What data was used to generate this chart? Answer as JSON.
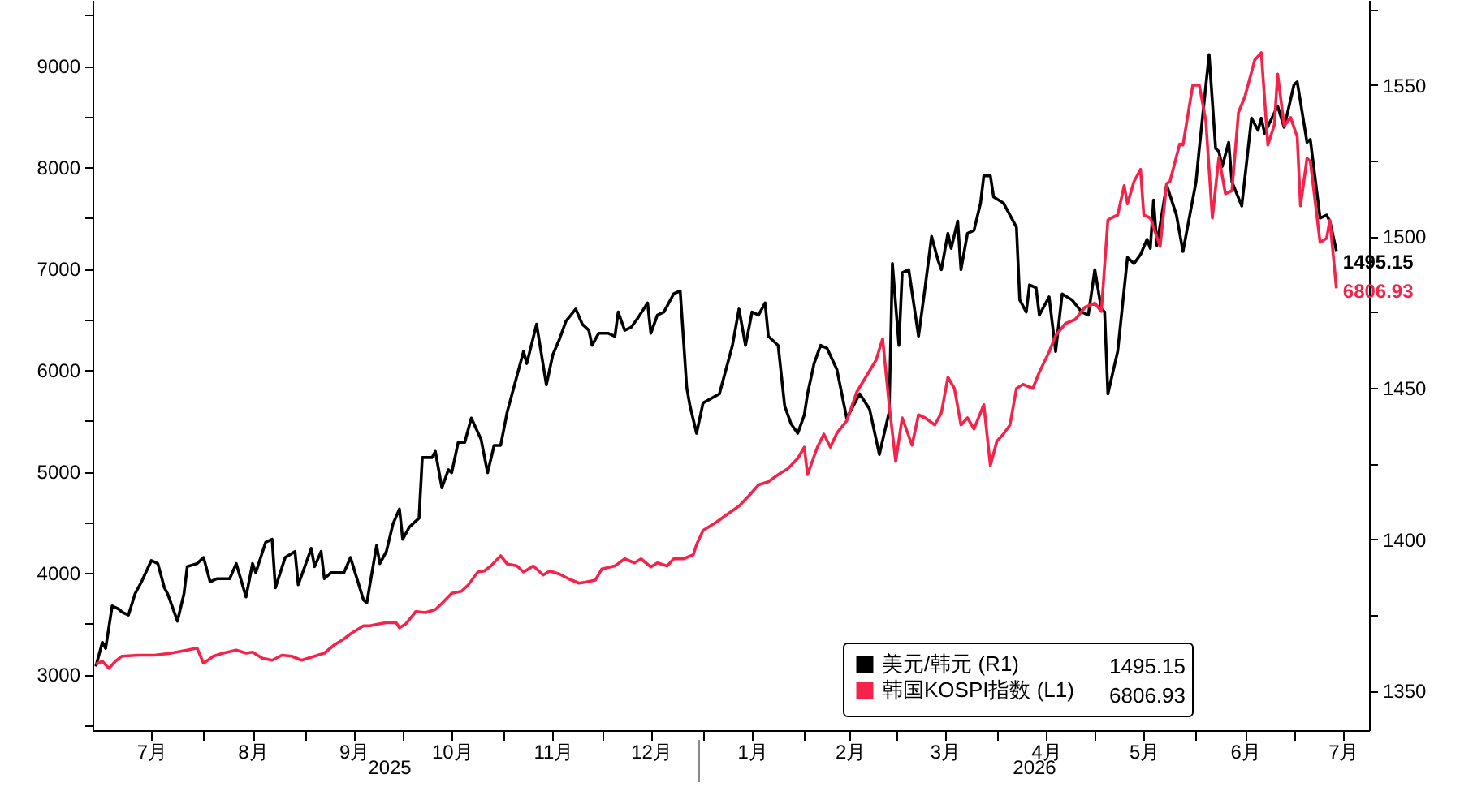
{
  "chart_data": {
    "type": "line",
    "xlim": [
      "2025-06-28",
      "2026-07-24"
    ],
    "xticks": [
      {
        "value": "2025-07-16",
        "label": "7月"
      },
      {
        "value": "2025-08-01",
        "label": null
      },
      {
        "value": "2025-08-16",
        "label": "8月"
      },
      {
        "value": "2025-09-01",
        "label": null
      },
      {
        "value": "2025-09-16",
        "label": "9月"
      },
      {
        "value": "2025-10-01",
        "label": null
      },
      {
        "value": "2025-10-16",
        "label": "10月"
      },
      {
        "value": "2025-11-01",
        "label": null
      },
      {
        "value": "2025-11-16",
        "label": "11月"
      },
      {
        "value": "2025-12-01",
        "label": null
      },
      {
        "value": "2025-12-16",
        "label": "12月"
      },
      {
        "value": "2026-01-01",
        "label": null
      },
      {
        "value": "2026-01-16",
        "label": "1月"
      },
      {
        "value": "2026-02-01",
        "label": null
      },
      {
        "value": "2026-02-15",
        "label": "2月"
      },
      {
        "value": "2026-03-01",
        "label": null
      },
      {
        "value": "2026-03-16",
        "label": "3月"
      },
      {
        "value": "2026-04-01",
        "label": null
      },
      {
        "value": "2026-04-16",
        "label": "4月"
      },
      {
        "value": "2026-05-01",
        "label": null
      },
      {
        "value": "2026-05-16",
        "label": "5月"
      },
      {
        "value": "2026-06-01",
        "label": null
      },
      {
        "value": "2026-06-16",
        "label": "6月"
      },
      {
        "value": "2026-07-01",
        "label": null
      },
      {
        "value": "2026-07-16",
        "label": "7月"
      }
    ],
    "ylim": [
      2450,
      9650
    ],
    "yticks": [
      {
        "value": 2500,
        "label": null
      },
      3000,
      {
        "value": 3500,
        "label": null
      },
      4000,
      {
        "value": 4500,
        "label": null
      },
      5000,
      {
        "value": 5500,
        "label": null
      },
      6000,
      {
        "value": 6500,
        "label": null
      },
      7000,
      {
        "value": 7500,
        "label": null
      },
      8000,
      {
        "value": 8500,
        "label": null
      },
      9000,
      {
        "value": 9500,
        "label": null
      }
    ],
    "y2lim": [
      1337,
      1578
    ],
    "y2ticks": [
      1350,
      {
        "value": 1375,
        "label": null
      },
      1400,
      {
        "value": 1425,
        "label": null
      },
      1450,
      {
        "value": 1475,
        "label": null
      },
      1500,
      {
        "value": 1525,
        "label": null
      },
      1550,
      {
        "value": 1575,
        "label": null
      }
    ],
    "legend": "bottom right",
    "annotations": [
      "2025",
      "2026"
    ],
    "series": [
      {
        "name": "美元/韩元 (R1)",
        "color": "#000000",
        "axis": "y2",
        "x": [
          "2025-06-29",
          "2025-07-01",
          "2025-07-02",
          "2025-07-04",
          "2025-07-06",
          "2025-07-07",
          "2025-07-09",
          "2025-07-11",
          "2025-07-13",
          "2025-07-16",
          "2025-07-18",
          "2025-07-20",
          "2025-07-21",
          "2025-07-24",
          "2025-07-26",
          "2025-07-27",
          "2025-07-30",
          "2025-08-01",
          "2025-08-03",
          "2025-08-05",
          "2025-08-09",
          "2025-08-11",
          "2025-08-14",
          "2025-08-16",
          "2025-08-17",
          "2025-08-20",
          "2025-08-22",
          "2025-08-23",
          "2025-08-26",
          "2025-08-29",
          "2025-08-30",
          "2025-09-02",
          "2025-09-03",
          "2025-09-04",
          "2025-09-06",
          "2025-09-07",
          "2025-09-09",
          "2025-09-13",
          "2025-09-15",
          "2025-09-19",
          "2025-09-20",
          "2025-09-23",
          "2025-09-24",
          "2025-09-26",
          "2025-09-28",
          "2025-09-30",
          "2025-10-01",
          "2025-10-03",
          "2025-10-06",
          "2025-10-07",
          "2025-10-10",
          "2025-10-11",
          "2025-10-13",
          "2025-10-15",
          "2025-10-16",
          "2025-10-18",
          "2025-10-20",
          "2025-10-22",
          "2025-10-25",
          "2025-10-27",
          "2025-10-29",
          "2025-10-31",
          "2025-11-02",
          "2025-11-04",
          "2025-11-07",
          "2025-11-08",
          "2025-11-11",
          "2025-11-14",
          "2025-11-16",
          "2025-11-18",
          "2025-11-20",
          "2025-11-23",
          "2025-11-25",
          "2025-11-27",
          "2025-11-28",
          "2025-11-30",
          "2025-12-03",
          "2025-12-05",
          "2025-12-06",
          "2025-12-08",
          "2025-12-10",
          "2025-12-12",
          "2025-12-15",
          "2025-12-16",
          "2025-12-18",
          "2025-12-20",
          "2025-12-23",
          "2025-12-25",
          "2025-12-27",
          "2025-12-28",
          "2025-12-30",
          "2026-01-01",
          "2026-01-06",
          "2026-01-10",
          "2026-01-12",
          "2026-01-14",
          "2026-01-16",
          "2026-01-18",
          "2026-01-20",
          "2026-01-21",
          "2026-01-24",
          "2026-01-26",
          "2026-01-28",
          "2026-01-30",
          "2026-02-01",
          "2026-02-02",
          "2026-02-04",
          "2026-02-06",
          "2026-02-08",
          "2026-02-11",
          "2026-02-14",
          "2026-02-18",
          "2026-02-21",
          "2026-02-24",
          "2026-02-27",
          "2026-02-28",
          "2026-03-02",
          "2026-03-03",
          "2026-03-05",
          "2026-03-08",
          "2026-03-10",
          "2026-03-12",
          "2026-03-14",
          "2026-03-15",
          "2026-03-17",
          "2026-03-18",
          "2026-03-20",
          "2026-03-21",
          "2026-03-23",
          "2026-03-25",
          "2026-03-27",
          "2026-03-28",
          "2026-03-30",
          "2026-03-31",
          "2026-04-03",
          "2026-04-05",
          "2026-04-07",
          "2026-04-08",
          "2026-04-10",
          "2026-04-11",
          "2026-04-13",
          "2026-04-14",
          "2026-04-17",
          "2026-04-19",
          "2026-04-21",
          "2026-04-24",
          "2026-04-27",
          "2026-04-29",
          "2026-05-01",
          "2026-05-03",
          "2026-05-04",
          "2026-05-05",
          "2026-05-08",
          "2026-05-11",
          "2026-05-13",
          "2026-05-15",
          "2026-05-17",
          "2026-05-18",
          "2026-05-19",
          "2026-05-20",
          "2026-05-23",
          "2026-05-26",
          "2026-05-28",
          "2026-06-01",
          "2026-06-02",
          "2026-06-05",
          "2026-06-07",
          "2026-06-08",
          "2026-06-09",
          "2026-06-11",
          "2026-06-12",
          "2026-06-15",
          "2026-06-18",
          "2026-06-20",
          "2026-06-21",
          "2026-06-22",
          "2026-06-26",
          "2026-06-28",
          "2026-07-01",
          "2026-07-02",
          "2026-07-05",
          "2026-07-06",
          "2026-07-09",
          "2026-07-11",
          "2026-07-12",
          "2026-07-14"
        ],
        "values": [
          1358,
          1366,
          1364,
          1378,
          1377,
          1376,
          1375,
          1382,
          1386,
          1393,
          1392,
          1384,
          1382,
          1373,
          1382,
          1391,
          1392,
          1394,
          1386,
          1387,
          1387,
          1392,
          1381,
          1392,
          1389,
          1399,
          1400,
          1384,
          1394,
          1396,
          1385,
          1394,
          1397,
          1391,
          1396,
          1387,
          1389,
          1389,
          1394,
          1380,
          1379,
          1398,
          1392,
          1396,
          1405,
          1410,
          1400,
          1404,
          1407,
          1427,
          1427,
          1429,
          1417,
          1423,
          1422,
          1432,
          1432,
          1440,
          1433,
          1422,
          1431,
          1431,
          1442,
          1450,
          1462,
          1458,
          1471,
          1451,
          1461,
          1466,
          1472,
          1476,
          1471,
          1469,
          1464,
          1468,
          1468,
          1467,
          1475,
          1469,
          1470,
          1473,
          1478,
          1468,
          1474,
          1475,
          1481,
          1482,
          1450,
          1444,
          1435,
          1445,
          1448,
          1464,
          1476,
          1464,
          1475,
          1474,
          1478,
          1467,
          1464,
          1444,
          1438,
          1435,
          1441,
          1448,
          1458,
          1464,
          1463,
          1456,
          1440,
          1448,
          1443,
          1428,
          1442,
          1491,
          1464,
          1488,
          1489,
          1467,
          1483,
          1500,
          1492,
          1489,
          1501,
          1496,
          1505,
          1489,
          1501,
          1502,
          1511,
          1520,
          1520,
          1513,
          1511,
          1507,
          1503,
          1479,
          1475,
          1484,
          1483,
          1474,
          1480,
          1462,
          1481,
          1479,
          1475,
          1474,
          1489,
          1476,
          1475,
          1448,
          1462,
          1493,
          1491,
          1494,
          1499,
          1496,
          1512,
          1497,
          1517,
          1507,
          1495,
          1518,
          1529,
          1560,
          1529,
          1528,
          1523,
          1531,
          1518,
          1510,
          1539,
          1535,
          1539,
          1534,
          1543,
          1536,
          1550,
          1551,
          1531,
          1532,
          1506,
          1507,
          1505,
          1495.15
        ],
        "value_labels": [
          null,
          null,
          null,
          null,
          null,
          null,
          null,
          null,
          null,
          null,
          null,
          null,
          null,
          null,
          null,
          null,
          null,
          null,
          null,
          null,
          null,
          null,
          null,
          null,
          null,
          null,
          null,
          null,
          null,
          null,
          null,
          null,
          null,
          null,
          null,
          null,
          null,
          null,
          null,
          null,
          null,
          null,
          null,
          null,
          null,
          null,
          null,
          null,
          null,
          null,
          null,
          null,
          null,
          null,
          null,
          null,
          null,
          null,
          null,
          null,
          null,
          null,
          null,
          null,
          null,
          null,
          null,
          null,
          null,
          null,
          null,
          null,
          null,
          null,
          null,
          null,
          null,
          null,
          null,
          null,
          null,
          null,
          null,
          null,
          null,
          null,
          null,
          null,
          null,
          null,
          null,
          null,
          null,
          null,
          null,
          null,
          null,
          null,
          null,
          null,
          null,
          null,
          null,
          null,
          null,
          null,
          null,
          null,
          null,
          null,
          null,
          null,
          null,
          null,
          null,
          null,
          null,
          null,
          null,
          null,
          null,
          null,
          null,
          null,
          null,
          null,
          null,
          null,
          null,
          null,
          null,
          null,
          null,
          null,
          null,
          null,
          null,
          null,
          null,
          null,
          null,
          null,
          null,
          null,
          null,
          null,
          null,
          null,
          null,
          null,
          null,
          null,
          null,
          null,
          null,
          null,
          null,
          null,
          null,
          null,
          null,
          null,
          null,
          null,
          null,
          null,
          null,
          null,
          null,
          null,
          null,
          null,
          null,
          null,
          null,
          null,
          null,
          null,
          null,
          null,
          null,
          null,
          null,
          null,
          null,
          "1495.15"
        ]
      },
      {
        "name": "韩国KOSPI指数 (L1)",
        "color": "#f5224a",
        "x": [
          "2025-06-29",
          "2025-07-01",
          "2025-07-03",
          "2025-07-05",
          "2025-07-07",
          "2025-07-12",
          "2025-07-17",
          "2025-07-22",
          "2025-07-27",
          "2025-07-30",
          "2025-08-01",
          "2025-08-04",
          "2025-08-07",
          "2025-08-11",
          "2025-08-14",
          "2025-08-16",
          "2025-08-19",
          "2025-08-22",
          "2025-08-25",
          "2025-08-28",
          "2025-08-31",
          "2025-09-04",
          "2025-09-07",
          "2025-09-10",
          "2025-09-13",
          "2025-09-15",
          "2025-09-18",
          "2025-09-19",
          "2025-09-21",
          "2025-09-24",
          "2025-09-26",
          "2025-09-29",
          "2025-09-30",
          "2025-10-02",
          "2025-10-05",
          "2025-10-08",
          "2025-10-11",
          "2025-10-13",
          "2025-10-16",
          "2025-10-19",
          "2025-10-21",
          "2025-10-24",
          "2025-10-26",
          "2025-10-28",
          "2025-10-31",
          "2025-11-02",
          "2025-11-05",
          "2025-11-07",
          "2025-11-10",
          "2025-11-13",
          "2025-11-15",
          "2025-11-18",
          "2025-11-21",
          "2025-11-24",
          "2025-11-26",
          "2025-11-29",
          "2025-12-01",
          "2025-12-05",
          "2025-12-08",
          "2025-12-11",
          "2025-12-13",
          "2025-12-16",
          "2025-12-18",
          "2025-12-21",
          "2025-12-23",
          "2025-12-26",
          "2025-12-29",
          "2025-12-30",
          "2026-01-01",
          "2026-01-05",
          "2026-01-08",
          "2026-01-12",
          "2026-01-15",
          "2026-01-18",
          "2026-01-21",
          "2026-01-24",
          "2026-01-27",
          "2026-01-30",
          "2026-02-01",
          "2026-02-02",
          "2026-02-05",
          "2026-02-07",
          "2026-02-09",
          "2026-02-11",
          "2026-02-14",
          "2026-02-17",
          "2026-02-20",
          "2026-02-23",
          "2026-02-25",
          "2026-02-27",
          "2026-03-01",
          "2026-03-03",
          "2026-03-06",
          "2026-03-08",
          "2026-03-10",
          "2026-03-13",
          "2026-03-15",
          "2026-03-17",
          "2026-03-19",
          "2026-03-21",
          "2026-03-23",
          "2026-03-25",
          "2026-03-28",
          "2026-03-30",
          "2026-04-01",
          "2026-04-03",
          "2026-04-05",
          "2026-04-07",
          "2026-04-09",
          "2026-04-12",
          "2026-04-14",
          "2026-04-17",
          "2026-04-19",
          "2026-04-22",
          "2026-04-25",
          "2026-04-28",
          "2026-05-01",
          "2026-05-03",
          "2026-05-05",
          "2026-05-06",
          "2026-05-08",
          "2026-05-10",
          "2026-05-11",
          "2026-05-13",
          "2026-05-15",
          "2026-05-16",
          "2026-05-18",
          "2026-05-21",
          "2026-05-23",
          "2026-05-24",
          "2026-05-27",
          "2026-05-28",
          "2026-05-31",
          "2026-06-02",
          "2026-06-04",
          "2026-06-06",
          "2026-06-08",
          "2026-06-10",
          "2026-06-12",
          "2026-06-14",
          "2026-06-16",
          "2026-06-19",
          "2026-06-21",
          "2026-06-23",
          "2026-06-25",
          "2026-06-26",
          "2026-06-28",
          "2026-06-30",
          "2026-07-02",
          "2026-07-03",
          "2026-07-05",
          "2026-07-06",
          "2026-07-09",
          "2026-07-11",
          "2026-07-12",
          "2026-07-14"
        ],
        "values": [
          3100,
          3130,
          3060,
          3130,
          3180,
          3190,
          3190,
          3210,
          3240,
          3260,
          3110,
          3180,
          3210,
          3240,
          3210,
          3220,
          3160,
          3140,
          3190,
          3180,
          3140,
          3180,
          3210,
          3290,
          3350,
          3400,
          3460,
          3480,
          3480,
          3500,
          3510,
          3510,
          3460,
          3500,
          3620,
          3610,
          3640,
          3700,
          3800,
          3820,
          3880,
          4010,
          4020,
          4070,
          4170,
          4090,
          4070,
          4010,
          4070,
          3980,
          4020,
          3990,
          3940,
          3900,
          3910,
          3930,
          4040,
          4070,
          4140,
          4100,
          4140,
          4060,
          4100,
          4070,
          4140,
          4140,
          4180,
          4280,
          4420,
          4500,
          4570,
          4660,
          4760,
          4870,
          4900,
          4970,
          5030,
          5130,
          5240,
          4970,
          5240,
          5370,
          5240,
          5380,
          5500,
          5780,
          5940,
          6100,
          6310,
          5660,
          5100,
          5530,
          5260,
          5560,
          5530,
          5460,
          5580,
          5930,
          5820,
          5460,
          5530,
          5420,
          5660,
          5060,
          5300,
          5370,
          5460,
          5820,
          5860,
          5820,
          5980,
          6180,
          6340,
          6460,
          6500,
          6620,
          6660,
          6580,
          7480,
          7500,
          7530,
          7820,
          7640,
          7860,
          7980,
          7530,
          7500,
          7220,
          7840,
          7860,
          8230,
          8220,
          8810,
          8810,
          8460,
          7500,
          8100,
          7740,
          7770,
          8540,
          8700,
          9060,
          9130,
          8220,
          8420,
          8920,
          8410,
          8490,
          8300,
          7620,
          8090,
          8060,
          7260,
          7300,
          7480,
          6806.93
        ],
        "value_labels": [
          null,
          null,
          null,
          null,
          null,
          null,
          null,
          null,
          null,
          null,
          null,
          null,
          null,
          null,
          null,
          null,
          null,
          null,
          null,
          null,
          null,
          null,
          null,
          null,
          null,
          null,
          null,
          null,
          null,
          null,
          null,
          null,
          null,
          null,
          null,
          null,
          null,
          null,
          null,
          null,
          null,
          null,
          null,
          null,
          null,
          null,
          null,
          null,
          null,
          null,
          null,
          null,
          null,
          null,
          null,
          null,
          null,
          null,
          null,
          null,
          null,
          null,
          null,
          null,
          null,
          null,
          null,
          null,
          null,
          null,
          null,
          null,
          null,
          null,
          null,
          null,
          null,
          null,
          null,
          null,
          null,
          null,
          null,
          null,
          null,
          null,
          null,
          null,
          null,
          null,
          null,
          null,
          null,
          null,
          null,
          null,
          null,
          null,
          null,
          null,
          null,
          null,
          null,
          null,
          null,
          null,
          null,
          null,
          null,
          null,
          null,
          null,
          null,
          null,
          null,
          null,
          null,
          null,
          null,
          null,
          null,
          null,
          null,
          null,
          null,
          null,
          null,
          null,
          null,
          null,
          null,
          null,
          null,
          null,
          null,
          null,
          null,
          null,
          null,
          null,
          null,
          null,
          null,
          null,
          null,
          null,
          null,
          null,
          null,
          null,
          null,
          null,
          null,
          null,
          null,
          "6806.93"
        ]
      }
    ]
  }
}
